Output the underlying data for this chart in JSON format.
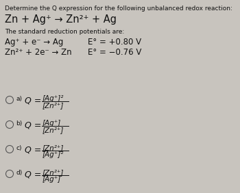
{
  "bg_color": "#c8c4be",
  "text_color": "#111111",
  "title_line": "Determine the Q expression for the following unbalanced redox reaction:",
  "reaction_main": "Zn + Ag⁺ → Zn²⁺ + Ag",
  "subtitle": "The standard reduction potentials are:",
  "reduction1_left": "Ag⁺ + e⁻ → Ag",
  "reduction1_right": "E° = +0.80 V",
  "reduction2_left": "Zn²⁺ + 2e⁻ → Zn",
  "reduction2_right": "E° = −0.76 V",
  "options": [
    {
      "label": "a)",
      "numerator": "[Ag⁺]²",
      "denominator": "[Zn²⁺]"
    },
    {
      "label": "b)",
      "numerator": "[Ag⁺]",
      "denominator": "[Zn²⁺]"
    },
    {
      "label": "c)",
      "numerator": "[Zn²⁺]",
      "denominator": "[Ag⁺]²"
    },
    {
      "label": "d)",
      "numerator": "[Zn²⁺]",
      "denominator": "[Ag⁺]"
    }
  ]
}
